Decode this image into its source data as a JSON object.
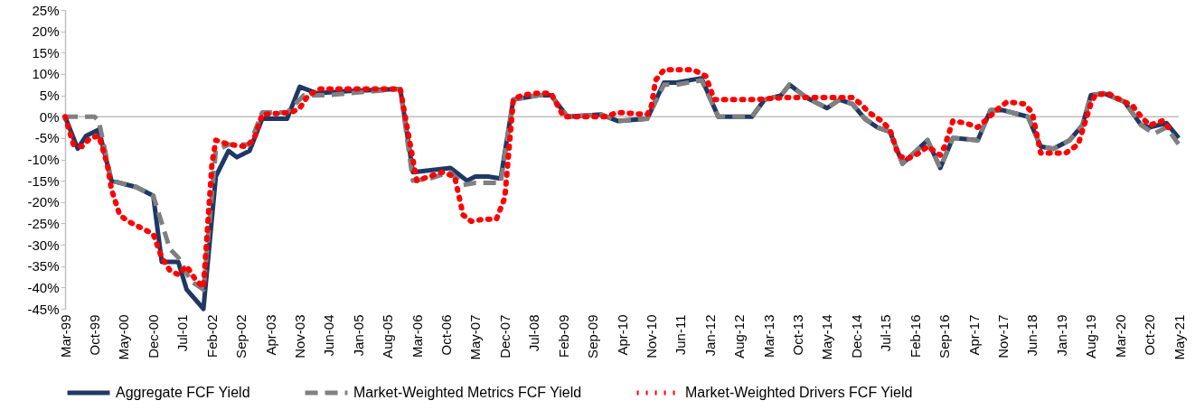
{
  "chart_data": {
    "type": "line",
    "xlim": [
      "1999-03",
      "2021-05"
    ],
    "xticks": [
      {
        "value": "1999-03",
        "label": "Mar-99"
      },
      {
        "value": "1999-10",
        "label": "Oct-99"
      },
      {
        "value": "2000-05",
        "label": "May-00"
      },
      {
        "value": "2000-12",
        "label": "Dec-00"
      },
      {
        "value": "2001-07",
        "label": "Jul-01"
      },
      {
        "value": "2002-02",
        "label": "Feb-02"
      },
      {
        "value": "2002-09",
        "label": "Sep-02"
      },
      {
        "value": "2003-04",
        "label": "Apr-03"
      },
      {
        "value": "2003-11",
        "label": "Nov-03"
      },
      {
        "value": "2004-06",
        "label": "Jun-04"
      },
      {
        "value": "2005-01",
        "label": "Jan-05"
      },
      {
        "value": "2005-08",
        "label": "Aug-05"
      },
      {
        "value": "2006-03",
        "label": "Mar-06"
      },
      {
        "value": "2006-10",
        "label": "Oct-06"
      },
      {
        "value": "2007-05",
        "label": "May-07"
      },
      {
        "value": "2007-12",
        "label": "Dec-07"
      },
      {
        "value": "2008-07",
        "label": "Jul-08"
      },
      {
        "value": "2009-02",
        "label": "Feb-09"
      },
      {
        "value": "2009-09",
        "label": "Sep-09"
      },
      {
        "value": "2010-04",
        "label": "Apr-10"
      },
      {
        "value": "2010-11",
        "label": "Nov-10"
      },
      {
        "value": "2011-06",
        "label": "Jun-11"
      },
      {
        "value": "2012-01",
        "label": "Jan-12"
      },
      {
        "value": "2012-08",
        "label": "Aug-12"
      },
      {
        "value": "2013-03",
        "label": "Mar-13"
      },
      {
        "value": "2013-10",
        "label": "Oct-13"
      },
      {
        "value": "2014-05",
        "label": "May-14"
      },
      {
        "value": "2014-12",
        "label": "Dec-14"
      },
      {
        "value": "2015-07",
        "label": "Jul-15"
      },
      {
        "value": "2016-02",
        "label": "Feb-16"
      },
      {
        "value": "2016-09",
        "label": "Sep-16"
      },
      {
        "value": "2017-04",
        "label": "Apr-17"
      },
      {
        "value": "2017-11",
        "label": "Nov-17"
      },
      {
        "value": "2018-06",
        "label": "Jun-18"
      },
      {
        "value": "2019-01",
        "label": "Jan-19"
      },
      {
        "value": "2019-08",
        "label": "Aug-19"
      },
      {
        "value": "2020-03",
        "label": "Mar-20"
      },
      {
        "value": "2020-10",
        "label": "Oct-20"
      },
      {
        "value": "2021-05",
        "label": "May-21"
      }
    ],
    "ylim": [
      -45,
      25
    ],
    "yticks": [
      {
        "value": -45,
        "label": "-45%"
      },
      {
        "value": -40,
        "label": "-40%"
      },
      {
        "value": -35,
        "label": "-35%"
      },
      {
        "value": -30,
        "label": "-30%"
      },
      {
        "value": -25,
        "label": "-25%"
      },
      {
        "value": -20,
        "label": "-20%"
      },
      {
        "value": -15,
        "label": "-15%"
      },
      {
        "value": -10,
        "label": "-10%"
      },
      {
        "value": -5,
        "label": "-5%"
      },
      {
        "value": 0,
        "label": "0%"
      },
      {
        "value": 5,
        "label": "5%"
      },
      {
        "value": 10,
        "label": "10%"
      },
      {
        "value": 15,
        "label": "15%"
      },
      {
        "value": 20,
        "label": "20%"
      },
      {
        "value": 25,
        "label": "25%"
      }
    ],
    "grid": false,
    "legend": "bottom",
    "marker": "none",
    "ref_lines": [
      {
        "axis": "y",
        "value": 0,
        "color": "#bfbfbf"
      }
    ],
    "series": [
      {
        "name": "Aggregate FCF Yield",
        "color": "#1f3864",
        "line_style": "solid",
        "x": [
          "1999-03",
          "1999-06",
          "1999-08",
          "1999-11",
          "2000-02",
          "2000-08",
          "2000-12",
          "2001-02",
          "2001-06",
          "2001-08",
          "2001-12",
          "2002-03",
          "2002-06",
          "2002-08",
          "2002-11",
          "2003-02",
          "2003-08",
          "2003-11",
          "2004-03",
          "2004-11",
          "2005-11",
          "2006-02",
          "2006-11",
          "2007-03",
          "2007-05",
          "2007-08",
          "2007-11",
          "2008-02",
          "2008-08",
          "2008-11",
          "2009-03",
          "2009-11",
          "2010-03",
          "2010-10",
          "2011-02",
          "2011-05",
          "2011-11",
          "2012-03",
          "2012-11",
          "2013-02",
          "2013-06",
          "2013-08",
          "2013-12",
          "2014-05",
          "2014-08",
          "2014-11",
          "2015-02",
          "2015-05",
          "2015-08",
          "2015-11",
          "2016-05",
          "2016-08",
          "2016-11",
          "2017-05",
          "2017-08",
          "2017-11",
          "2018-05",
          "2018-08",
          "2018-11",
          "2019-03",
          "2019-06",
          "2019-08",
          "2019-11",
          "2020-04",
          "2020-08",
          "2020-10",
          "2021-02",
          "2021-05"
        ],
        "values": [
          0,
          -7.5,
          -4.5,
          -3,
          -15,
          -16.5,
          -18.5,
          -34,
          -34,
          -40.5,
          -45,
          -14,
          -8,
          -9.5,
          -8,
          -0.5,
          -0.5,
          7,
          5.5,
          6,
          6.5,
          -13,
          -12,
          -15,
          -14,
          -14,
          -14.5,
          4,
          5,
          5,
          0,
          0.5,
          -1,
          -0.5,
          8,
          8,
          9,
          0,
          0,
          4,
          5,
          7.5,
          4.5,
          2,
          4,
          3,
          -0.5,
          -2.5,
          -3.5,
          -11,
          -5.5,
          -12,
          -5,
          -5.5,
          1.5,
          1.5,
          0,
          -7,
          -7.5,
          -5.5,
          -2,
          5,
          5.5,
          3.5,
          -2,
          -2.5,
          -1.5,
          -5
        ]
      },
      {
        "name": "Market-Weighted Metrics FCF Yield",
        "color": "#808080",
        "line_style": "dashed",
        "x": [
          "1999-03",
          "1999-10",
          "1999-11",
          "2000-02",
          "2000-08",
          "2000-12",
          "2001-04",
          "2001-06",
          "2001-09",
          "2001-12",
          "2002-03",
          "2002-06",
          "2002-11",
          "2003-02",
          "2003-08",
          "2003-12",
          "2004-05",
          "2005-11",
          "2006-02",
          "2006-06",
          "2006-11",
          "2007-02",
          "2007-05",
          "2007-11",
          "2008-02",
          "2008-08",
          "2008-11",
          "2009-03",
          "2009-11",
          "2010-03",
          "2010-10",
          "2011-02",
          "2011-05",
          "2011-11",
          "2012-03",
          "2012-11",
          "2013-02",
          "2013-06",
          "2013-08",
          "2013-12",
          "2014-05",
          "2014-08",
          "2014-11",
          "2015-02",
          "2015-05",
          "2015-08",
          "2015-11",
          "2016-05",
          "2016-08",
          "2016-11",
          "2017-05",
          "2017-08",
          "2017-11",
          "2018-05",
          "2018-08",
          "2018-11",
          "2019-03",
          "2019-06",
          "2019-08",
          "2019-11",
          "2020-04",
          "2020-08",
          "2020-11",
          "2021-02",
          "2021-05"
        ],
        "values": [
          0,
          0,
          -1,
          -15,
          -16.5,
          -18.5,
          -31,
          -33,
          -38.5,
          -40.5,
          -8,
          -6.5,
          -6.5,
          1,
          1,
          5,
          5,
          6.5,
          -15,
          -14.5,
          -13,
          -16,
          -15.5,
          -15.5,
          4,
          5,
          5,
          0,
          0.5,
          -1,
          -0.5,
          7.5,
          7.5,
          8.5,
          0,
          0,
          4,
          5,
          7.5,
          4.5,
          2,
          4,
          3,
          -0.5,
          -2.5,
          -3.5,
          -11,
          -5.5,
          -12,
          -5,
          -5.5,
          1.5,
          1.5,
          0,
          -7,
          -7.5,
          -5.5,
          -2,
          5,
          5.5,
          3.5,
          -2,
          -4,
          -2.5,
          -6.5
        ]
      },
      {
        "name": "Market-Weighted Drivers FCF Yield",
        "color": "#ff0000",
        "line_style": "dotted",
        "x": [
          "1999-03",
          "1999-05",
          "1999-07",
          "1999-09",
          "1999-11",
          "2000-01",
          "2000-02",
          "2000-04",
          "2000-06",
          "2000-09",
          "2000-12",
          "2001-02",
          "2001-04",
          "2001-06",
          "2001-08",
          "2001-10",
          "2001-12",
          "2002-02",
          "2002-03",
          "2002-06",
          "2002-10",
          "2002-12",
          "2003-02",
          "2003-09",
          "2003-11",
          "2004-01",
          "2004-04",
          "2005-11",
          "2006-03",
          "2006-06",
          "2006-09",
          "2006-12",
          "2007-02",
          "2007-04",
          "2007-07",
          "2007-10",
          "2007-12",
          "2008-02",
          "2008-04",
          "2008-08",
          "2008-11",
          "2009-02",
          "2009-12",
          "2010-03",
          "2010-10",
          "2010-11",
          "2010-12",
          "2011-02",
          "2011-09",
          "2011-12",
          "2012-02",
          "2012-12",
          "2013-07",
          "2014-11",
          "2015-01",
          "2015-03",
          "2015-06",
          "2015-08",
          "2015-10",
          "2015-12",
          "2016-03",
          "2016-05",
          "2016-08",
          "2016-09",
          "2016-11",
          "2017-02",
          "2017-05",
          "2017-10",
          "2017-12",
          "2018-04",
          "2018-06",
          "2018-08",
          "2019-02",
          "2019-05",
          "2019-08",
          "2019-09",
          "2019-12",
          "2020-03",
          "2020-06",
          "2020-08",
          "2020-10",
          "2021-01",
          "2021-03"
        ],
        "values": [
          0,
          -6.5,
          -7,
          -5,
          -4.5,
          -11,
          -17,
          -23,
          -24.5,
          -26,
          -27.5,
          -33,
          -36,
          -37,
          -35,
          -38,
          -40,
          -11,
          -5.5,
          -6.5,
          -7,
          -5.5,
          0.5,
          1,
          2,
          5,
          6.5,
          6.5,
          -15,
          -14,
          -13,
          -14,
          -23,
          -24.5,
          -24,
          -24,
          -19,
          4,
          5,
          5.5,
          5.5,
          0,
          0,
          1,
          0.5,
          2.5,
          8.5,
          11,
          11,
          9.5,
          4,
          4,
          4.5,
          4.5,
          3,
          1,
          -1,
          -3,
          -9,
          -10,
          -8.5,
          -7,
          -9,
          -7,
          -1,
          -1.5,
          -2.5,
          2,
          3.5,
          3,
          1,
          -8.5,
          -8.5,
          -6.5,
          3,
          5,
          5.5,
          4,
          2.5,
          0,
          -2,
          -1,
          -3
        ]
      }
    ]
  }
}
